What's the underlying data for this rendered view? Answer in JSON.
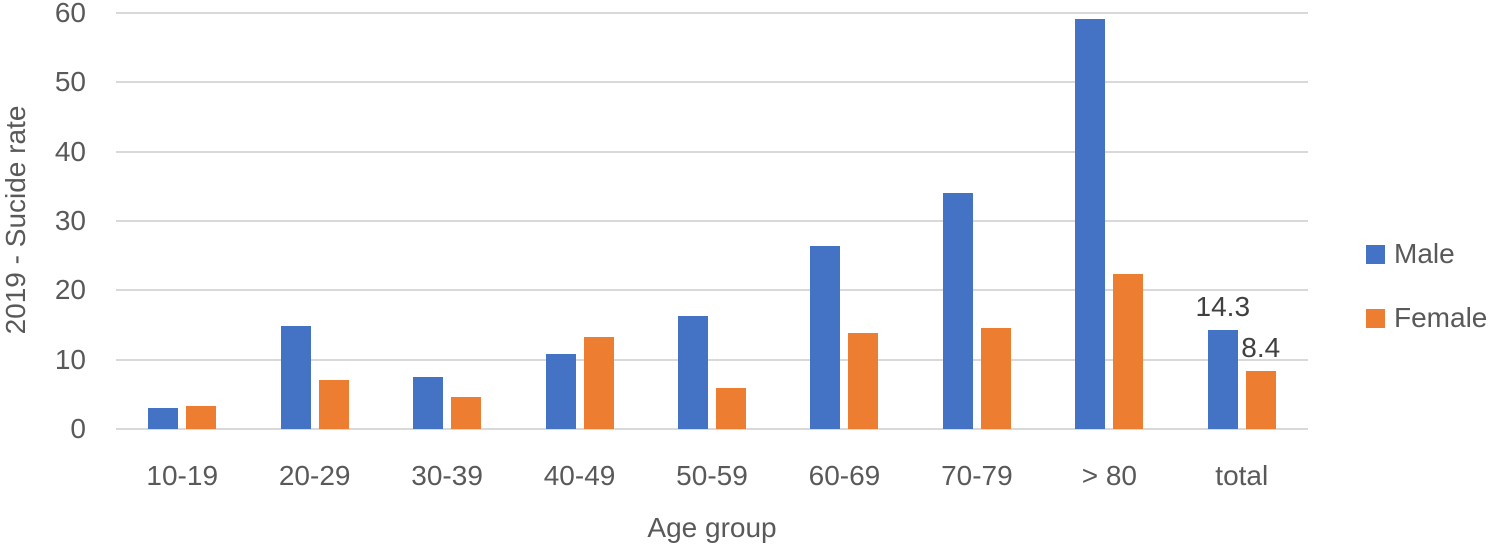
{
  "chart_data": {
    "type": "bar",
    "title": "",
    "ylabel": "2019 - Sucide rate",
    "xlabel": "Age group",
    "ylim": [
      0,
      60
    ],
    "yticks": [
      0,
      10,
      20,
      30,
      40,
      50,
      60
    ],
    "grid": true,
    "legend_position": "right",
    "categories": [
      "10-19",
      "20-29",
      "30-39",
      "40-49",
      "50-59",
      "60-69",
      "70-79",
      "> 80",
      "total"
    ],
    "series": [
      {
        "name": "Male",
        "color": "#4472C4",
        "values": [
          3.1,
          14.9,
          7.5,
          10.8,
          16.3,
          26.4,
          34.0,
          59.1,
          14.3
        ],
        "data_labels": [
          null,
          null,
          null,
          null,
          null,
          null,
          null,
          null,
          "14.3"
        ]
      },
      {
        "name": "Female",
        "color": "#ED7D31",
        "values": [
          3.3,
          7.0,
          4.6,
          13.3,
          5.9,
          13.8,
          14.5,
          22.3,
          8.4
        ],
        "data_labels": [
          null,
          null,
          null,
          null,
          null,
          null,
          null,
          null,
          "8.4"
        ]
      }
    ],
    "colors": {
      "gridline": "#d9d9d9",
      "axis_text": "#595959",
      "data_label_text": "#404040",
      "background": "#ffffff"
    }
  }
}
